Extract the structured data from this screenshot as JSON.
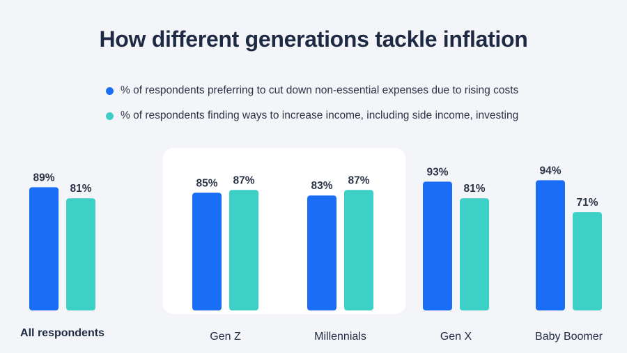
{
  "title": "How different generations tackle inflation",
  "legend": [
    {
      "label": "% of respondents preferring to cut down non-essential expenses due to rising costs",
      "color": "#1a6ef5"
    },
    {
      "label": "% of respondents finding ways to increase income, including side income, investing",
      "color": "#3dd0c6"
    }
  ],
  "colors": {
    "background": "#f4f5f8",
    "highlight_panel": "#ffffff",
    "series_1": "#1a6ef5",
    "series_2": "#3dd0c6"
  },
  "chart_data": {
    "type": "bar",
    "title": "How different generations tackle inflation",
    "categories": [
      "All respondents",
      "Gen Z",
      "Millennials",
      "Gen X",
      "Baby Boomer"
    ],
    "series": [
      {
        "name": "% of respondents preferring to cut down non-essential expenses due to rising costs",
        "values": [
          89,
          85,
          83,
          93,
          94
        ],
        "labels": [
          "89%",
          "85%",
          "83%",
          "93%",
          "94%"
        ]
      },
      {
        "name": "% of respondents finding ways to increase income, including side income, investing",
        "values": [
          81,
          87,
          87,
          81,
          71
        ],
        "labels": [
          "81%",
          "87%",
          "87%",
          "81%",
          "71%"
        ]
      }
    ],
    "highlighted_categories": [
      "Gen Z",
      "Millennials"
    ],
    "bold_categories": [
      "All respondents"
    ],
    "grid": false,
    "legend_position": "top"
  }
}
